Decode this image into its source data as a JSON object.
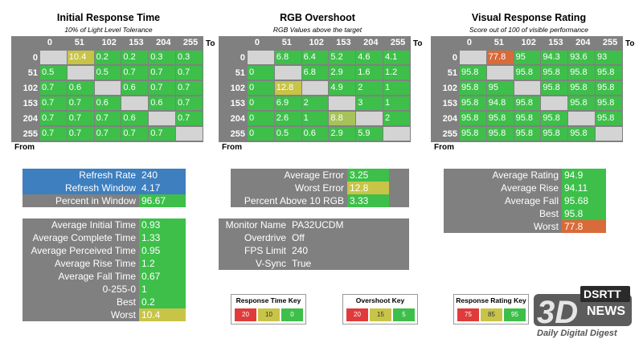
{
  "colors": {
    "green": "#3dbf4a",
    "yellow": "#c8c447",
    "orange": "#d96a3a",
    "empty": "#d4d4d4",
    "gray": "#808080",
    "blue": "#3d7fbf",
    "lightgreen": "#a6c35a"
  },
  "chart_data": [
    {
      "type": "table",
      "title": "Initial Response Time",
      "subtitle": "10% of Light Level Tolerance",
      "columns": [
        "0",
        "51",
        "102",
        "153",
        "204",
        "255"
      ],
      "rows": [
        "0",
        "51",
        "102",
        "153",
        "204",
        "255"
      ],
      "col_axis_label": "To",
      "row_axis_label": "From",
      "values": [
        [
          null,
          "10.4",
          "0.2",
          "0.2",
          "0.3",
          "0.3"
        ],
        [
          "0.5",
          null,
          "0.5",
          "0.7",
          "0.7",
          "0.7"
        ],
        [
          "0.7",
          "0.6",
          null,
          "0.6",
          "0.7",
          "0.7"
        ],
        [
          "0.7",
          "0.7",
          "0.6",
          null,
          "0.6",
          "0.7"
        ],
        [
          "0.7",
          "0.7",
          "0.7",
          "0.6",
          null,
          "0.7"
        ],
        [
          "0.7",
          "0.7",
          "0.7",
          "0.7",
          "0.7",
          null
        ]
      ],
      "cell_colors": [
        [
          "empty",
          "yellow",
          "green",
          "green",
          "green",
          "green"
        ],
        [
          "green",
          "empty",
          "green",
          "green",
          "green",
          "green"
        ],
        [
          "green",
          "green",
          "empty",
          "green",
          "green",
          "green"
        ],
        [
          "green",
          "green",
          "green",
          "empty",
          "green",
          "green"
        ],
        [
          "green",
          "green",
          "green",
          "green",
          "empty",
          "green"
        ],
        [
          "green",
          "green",
          "green",
          "green",
          "green",
          "empty"
        ]
      ]
    },
    {
      "type": "table",
      "title": "RGB Overshoot",
      "subtitle": "RGB Values above the target",
      "columns": [
        "0",
        "51",
        "102",
        "153",
        "204",
        "255"
      ],
      "rows": [
        "0",
        "51",
        "102",
        "153",
        "204",
        "255"
      ],
      "col_axis_label": "To",
      "row_axis_label": "From",
      "values": [
        [
          null,
          "6.8",
          "6.4",
          "5.2",
          "4.6",
          "4.1"
        ],
        [
          "0",
          null,
          "6.8",
          "2.9",
          "1.6",
          "1.2"
        ],
        [
          "0",
          "12.8",
          null,
          "4.9",
          "2",
          "1"
        ],
        [
          "0",
          "6.9",
          "2",
          null,
          "3",
          "1"
        ],
        [
          "0",
          "2.6",
          "1",
          "8.8",
          null,
          "2"
        ],
        [
          "0",
          "0.5",
          "0.6",
          "2.9",
          "5.9",
          null
        ]
      ],
      "cell_colors": [
        [
          "empty",
          "green",
          "green",
          "green",
          "green",
          "green"
        ],
        [
          "green",
          "empty",
          "green",
          "green",
          "green",
          "green"
        ],
        [
          "green",
          "yellow",
          "empty",
          "green",
          "green",
          "green"
        ],
        [
          "green",
          "green",
          "green",
          "empty",
          "green",
          "green"
        ],
        [
          "green",
          "green",
          "green",
          "lightgreen",
          "empty",
          "green"
        ],
        [
          "green",
          "green",
          "green",
          "green",
          "green",
          "empty"
        ]
      ]
    },
    {
      "type": "table",
      "title": "Visual Response Rating",
      "subtitle": "Score out of 100 of visible performance",
      "columns": [
        "0",
        "51",
        "102",
        "153",
        "204",
        "255"
      ],
      "rows": [
        "0",
        "51",
        "102",
        "153",
        "204",
        "255"
      ],
      "col_axis_label": "To",
      "row_axis_label": "From",
      "values": [
        [
          null,
          "77.8",
          "95",
          "94.3",
          "93.6",
          "93"
        ],
        [
          "95.8",
          null,
          "95.8",
          "95.8",
          "95.8",
          "95.8"
        ],
        [
          "95.8",
          "95",
          null,
          "95.8",
          "95.8",
          "95.8"
        ],
        [
          "95.8",
          "94.8",
          "95.8",
          null,
          "95.8",
          "95.8"
        ],
        [
          "95.8",
          "95.8",
          "95.8",
          "95.8",
          null,
          "95.8"
        ],
        [
          "95.8",
          "95.8",
          "95.8",
          "95.8",
          "95.8",
          null
        ]
      ],
      "cell_colors": [
        [
          "empty",
          "orange",
          "green",
          "green",
          "green",
          "green"
        ],
        [
          "green",
          "empty",
          "green",
          "green",
          "green",
          "green"
        ],
        [
          "green",
          "green",
          "empty",
          "green",
          "green",
          "green"
        ],
        [
          "green",
          "green",
          "green",
          "empty",
          "green",
          "green"
        ],
        [
          "green",
          "green",
          "green",
          "green",
          "empty",
          "green"
        ],
        [
          "green",
          "green",
          "green",
          "green",
          "green",
          "empty"
        ]
      ]
    }
  ],
  "refresh_panel": [
    {
      "label": "Refresh Rate",
      "value": "240",
      "label_color": "blue",
      "value_color": "blue"
    },
    {
      "label": "Refresh Window",
      "value": "4.17",
      "label_color": "blue",
      "value_color": "blue"
    },
    {
      "label": "Percent in Window",
      "value": "96.67",
      "label_color": "gray",
      "value_color": "green"
    }
  ],
  "response_panel": [
    {
      "label": "Average Initial Time",
      "value": "0.93",
      "value_color": "green"
    },
    {
      "label": "Average Complete Time",
      "value": "1.33",
      "value_color": "green"
    },
    {
      "label": "Average Perceived Time",
      "value": "0.95",
      "value_color": "green"
    },
    {
      "label": "Average Rise Time",
      "value": "1.2",
      "value_color": "green"
    },
    {
      "label": "Average Fall Time",
      "value": "0.67",
      "value_color": "green"
    },
    {
      "label": "0-255-0",
      "value": "1",
      "value_color": "green"
    },
    {
      "label": "Best",
      "value": "0.2",
      "value_color": "green"
    },
    {
      "label": "Worst",
      "value": "10.4",
      "value_color": "yellow"
    }
  ],
  "overshoot_panel": [
    {
      "label": "Average Error",
      "value": "3.25",
      "value_color": "green"
    },
    {
      "label": "Worst Error",
      "value": "12.8",
      "value_color": "yellow"
    },
    {
      "label": "Percent Above 10 RGB",
      "value": "3.33",
      "value_color": "green"
    }
  ],
  "monitor_panel": [
    {
      "label": "Monitor Name",
      "value": "PA32UCDM"
    },
    {
      "label": "Overdrive",
      "value": "Off"
    },
    {
      "label": "FPS Limit",
      "value": "240"
    },
    {
      "label": "V-Sync",
      "value": "True"
    }
  ],
  "rating_panel": [
    {
      "label": "Average Rating",
      "value": "94.9",
      "value_color": "green"
    },
    {
      "label": "Average Rise",
      "value": "94.11",
      "value_color": "green"
    },
    {
      "label": "Average Fall",
      "value": "95.68",
      "value_color": "green"
    },
    {
      "label": "Best",
      "value": "95.8",
      "value_color": "green"
    },
    {
      "label": "Worst",
      "value": "77.8",
      "value_color": "orange"
    }
  ],
  "keys": [
    {
      "title": "Response Time Key",
      "items": [
        {
          "text": "20",
          "color": "#e03b3b"
        },
        {
          "text": "10",
          "color": "#c8c447"
        },
        {
          "text": "0",
          "color": "#3dbf4a"
        }
      ]
    },
    {
      "title": "Overshoot Key",
      "items": [
        {
          "text": "20",
          "color": "#e03b3b"
        },
        {
          "text": "15",
          "color": "#c8c447"
        },
        {
          "text": "5",
          "color": "#3dbf4a"
        }
      ]
    },
    {
      "title": "Response Rating Key",
      "items": [
        {
          "text": "75",
          "color": "#e03b3b"
        },
        {
          "text": "85",
          "color": "#c8c447"
        },
        {
          "text": "95",
          "color": "#3dbf4a"
        }
      ]
    }
  ],
  "logo": {
    "brand_top": "DSRTT",
    "brand_mid": "NEWS",
    "brand_big": "3D",
    "tagline": "Daily Digital Digest"
  }
}
